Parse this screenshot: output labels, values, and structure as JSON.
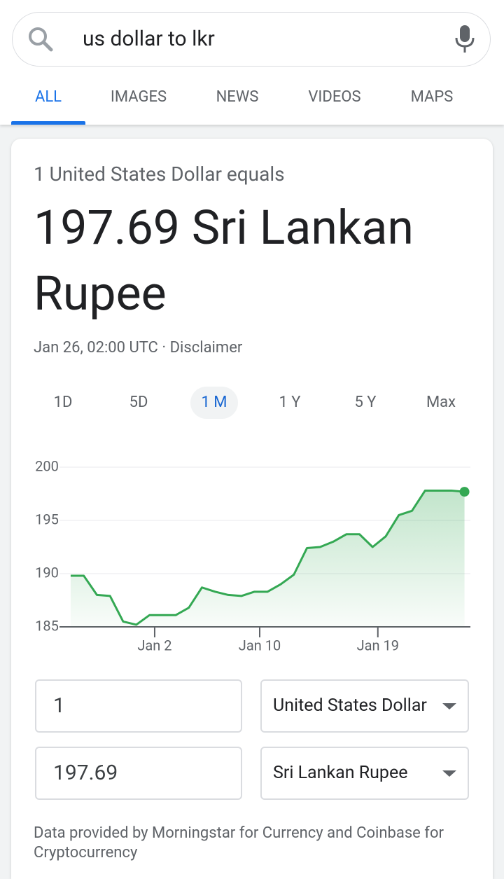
{
  "search": {
    "query": "us dollar to lkr"
  },
  "tabs": [
    "ALL",
    "IMAGES",
    "NEWS",
    "VIDEOS",
    "MAPS"
  ],
  "card": {
    "intro": "1 United States Dollar equals",
    "result": "197.69 Sri Lankan Rupee",
    "timestamp": "Jan 26, 02:00 UTC",
    "separator": "·",
    "disclaimer": "Disclaimer"
  },
  "ranges": [
    "1D",
    "5D",
    "1 M",
    "1 Y",
    "5 Y",
    "Max"
  ],
  "chart_data": {
    "type": "area",
    "x": [
      -4.4,
      -3.4,
      -2.4,
      -1.4,
      -0.4,
      0.6,
      1.6,
      2.6,
      3.6,
      4.6,
      5.6,
      6.6,
      7.6,
      8.6,
      9.6,
      10.6,
      11.6,
      12.6,
      13.6,
      14.6,
      15.6,
      16.6,
      17.6,
      18.6,
      19.6,
      20.6,
      21.6,
      22.6,
      23.6,
      24.6,
      25.6
    ],
    "values": [
      189.8,
      189.8,
      188.0,
      187.9,
      185.5,
      185.2,
      186.1,
      186.1,
      186.1,
      186.8,
      188.7,
      188.3,
      188.0,
      187.9,
      188.3,
      188.3,
      189.0,
      189.9,
      192.4,
      192.5,
      193.0,
      193.7,
      193.7,
      192.5,
      193.5,
      195.5,
      195.9,
      197.8,
      197.8,
      197.8,
      197.69
    ],
    "color": "#34a853",
    "xlim": [
      -5.25,
      26.05
    ],
    "xticks": [
      {
        "value": 2,
        "label": "Jan 2"
      },
      {
        "value": 10,
        "label": "Jan 10"
      },
      {
        "value": 19,
        "label": "Jan 19"
      }
    ],
    "ylim": [
      185,
      200
    ],
    "yticks": [
      185,
      190,
      195,
      200
    ],
    "grid": true
  },
  "converter": {
    "from_amount": "1",
    "from_currency": "United States Dollar",
    "to_amount": "197.69",
    "to_currency": "Sri Lankan Rupee"
  },
  "footer": "Data provided by Morningstar for Currency and Coinbase for Cryptocurrency"
}
